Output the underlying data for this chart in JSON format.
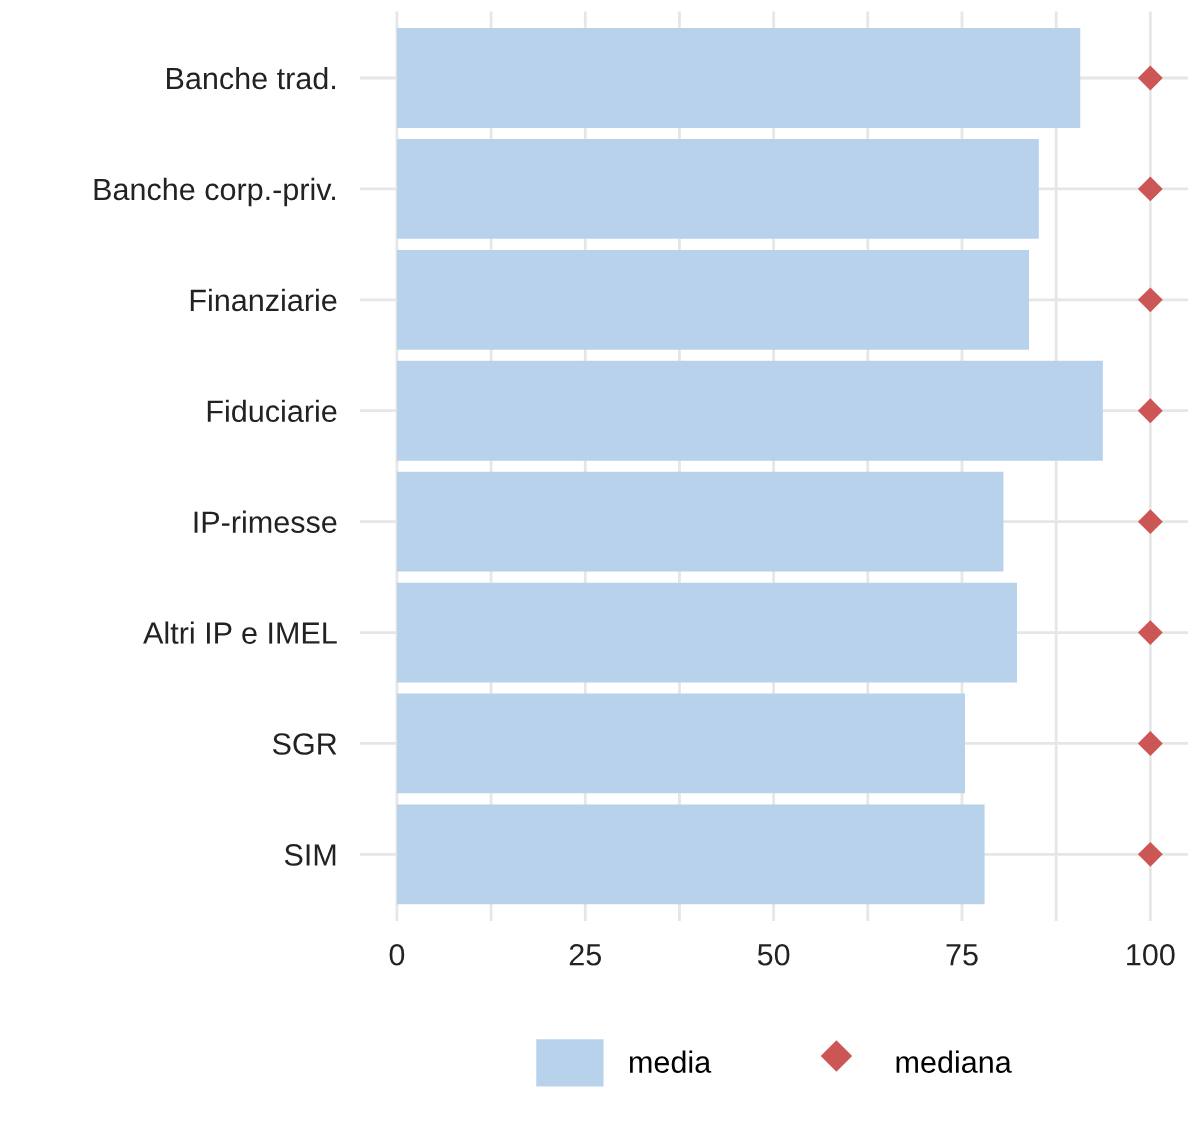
{
  "chart_data": {
    "type": "bar",
    "orientation": "horizontal",
    "categories": [
      "Banche trad.",
      "Banche corp.-priv.",
      "Finanziarie",
      "Fiduciarie",
      "IP-rimesse",
      "Altri IP e IMEL",
      "SGR",
      "SIM"
    ],
    "series": [
      {
        "name": "media",
        "color": "#b8d2ec",
        "values": [
          90.7,
          85.2,
          83.9,
          93.7,
          80.5,
          82.3,
          75.4,
          78.0
        ]
      },
      {
        "name": "mediana",
        "type": "scatter",
        "marker": "diamond",
        "color": "#cc5555",
        "values": [
          100,
          100,
          100,
          100,
          100,
          100,
          100,
          100
        ]
      }
    ],
    "xlim": [
      -4.9,
      105
    ],
    "xticks": [
      0,
      {
        "value": 12.5,
        "label": null
      },
      25,
      {
        "value": 37.5,
        "label": null
      },
      50,
      {
        "value": 62.5,
        "label": null
      },
      75,
      {
        "value": 87.5,
        "label": null
      },
      100
    ],
    "grid": true,
    "legend": "bottom"
  }
}
